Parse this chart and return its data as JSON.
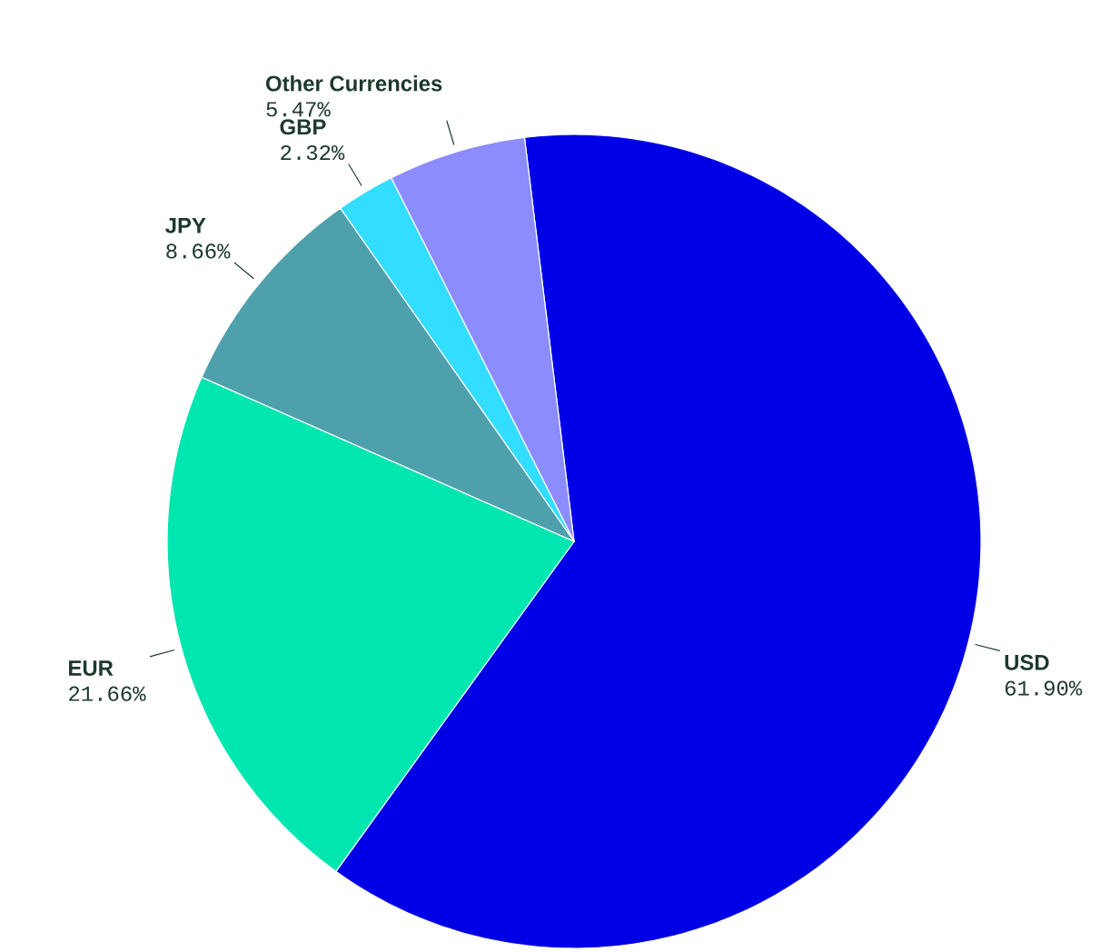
{
  "chart_data": {
    "type": "pie",
    "categories": [
      "USD",
      "EUR",
      "JPY",
      "GBP",
      "Other Currencies"
    ],
    "values": [
      61.9,
      21.66,
      8.66,
      2.32,
      5.47
    ],
    "value_labels": [
      "61.90%",
      "21.66%",
      "8.66%",
      "2.32%",
      "5.47%"
    ],
    "colors": [
      "#0000e6",
      "#00e6b0",
      "#4fa0ad",
      "#33ddff",
      "#8c8cff"
    ]
  }
}
